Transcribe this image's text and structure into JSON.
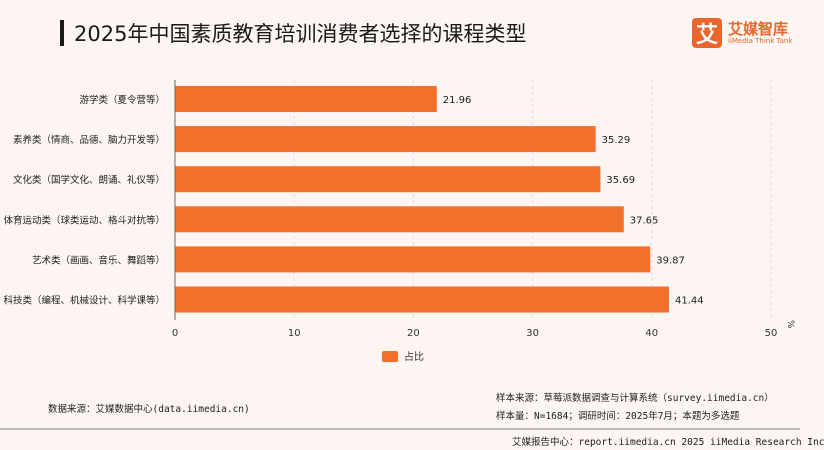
{
  "title": "2025年中国素质教育培训消费者选择的课程类型",
  "logo": {
    "cn": "艾媒智库",
    "en": "iiMedia Think Tank",
    "mark": "艾"
  },
  "chart_data": {
    "type": "bar",
    "orientation": "horizontal",
    "categories": [
      "游学类（夏令营等）",
      "素养类（情商、品德、脑力开发等）",
      "文化类（国学文化、朗诵、礼仪等）",
      "体育运动类（球类运动、格斗对抗等）",
      "艺术类（画画、音乐、舞蹈等）",
      "科技类（编程、机械设计、科学课等）"
    ],
    "series": [
      {
        "name": "占比",
        "values": [
          21.96,
          35.29,
          35.69,
          37.65,
          39.87,
          41.44
        ],
        "color": "#f26f2c"
      }
    ],
    "xlim": [
      0,
      50
    ],
    "xticks": [
      "0",
      "10",
      "20",
      "30",
      "40",
      "50"
    ],
    "xunit": "%",
    "legend": "bottom"
  },
  "footer": {
    "source": "数据来源：艾媒数据中心(data.iimedia.cn)",
    "sample_source": "样本来源：草莓派数据调查与计算系统（survey.iimedia.cn）",
    "sample_size": "样本量：N=1684；调研时间：2025年7月；本题为多选题",
    "report": "艾媒报告中心：report.iimedia.cn   2025 iiMedia Research Inc"
  }
}
